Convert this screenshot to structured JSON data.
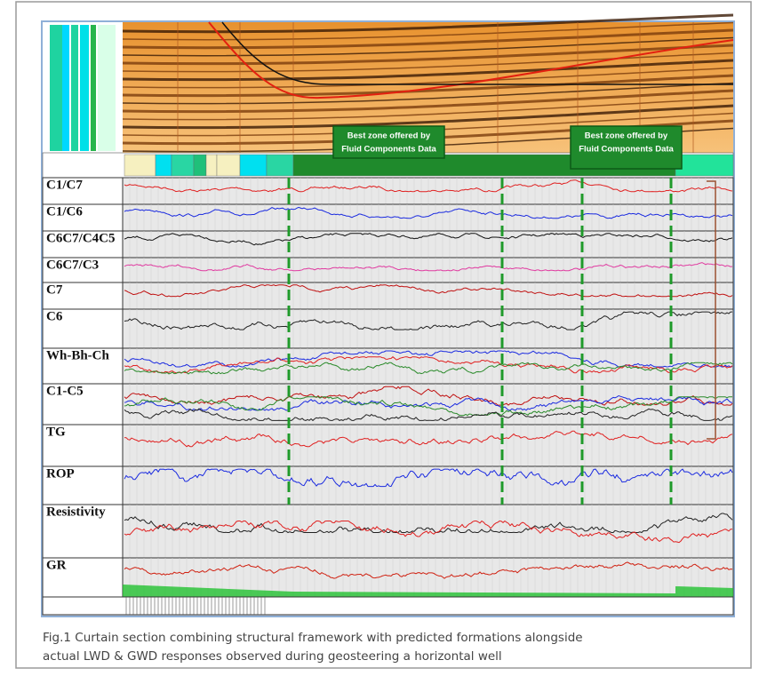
{
  "figure": {
    "callouts": [
      {
        "lines": [
          "Best zone offered by",
          "Fluid Components Data"
        ]
      },
      {
        "lines": [
          "Best zone offered by",
          "Fluid Components Data"
        ]
      }
    ],
    "tracks": [
      "C1/C7",
      "C1/C6",
      "C6C7/C4C5",
      "C6C7/C3",
      "C7",
      "C6",
      "Wh-Bh-Ch",
      "C1-C5",
      "TG",
      "ROP",
      "Resistivity",
      "GR"
    ]
  },
  "caption": {
    "lines": [
      "Fig.1 Curtain section combining structural framework with predicted formations alongside",
      "actual LWD & GWD responses observed during geosteering a horizontal well"
    ]
  }
}
